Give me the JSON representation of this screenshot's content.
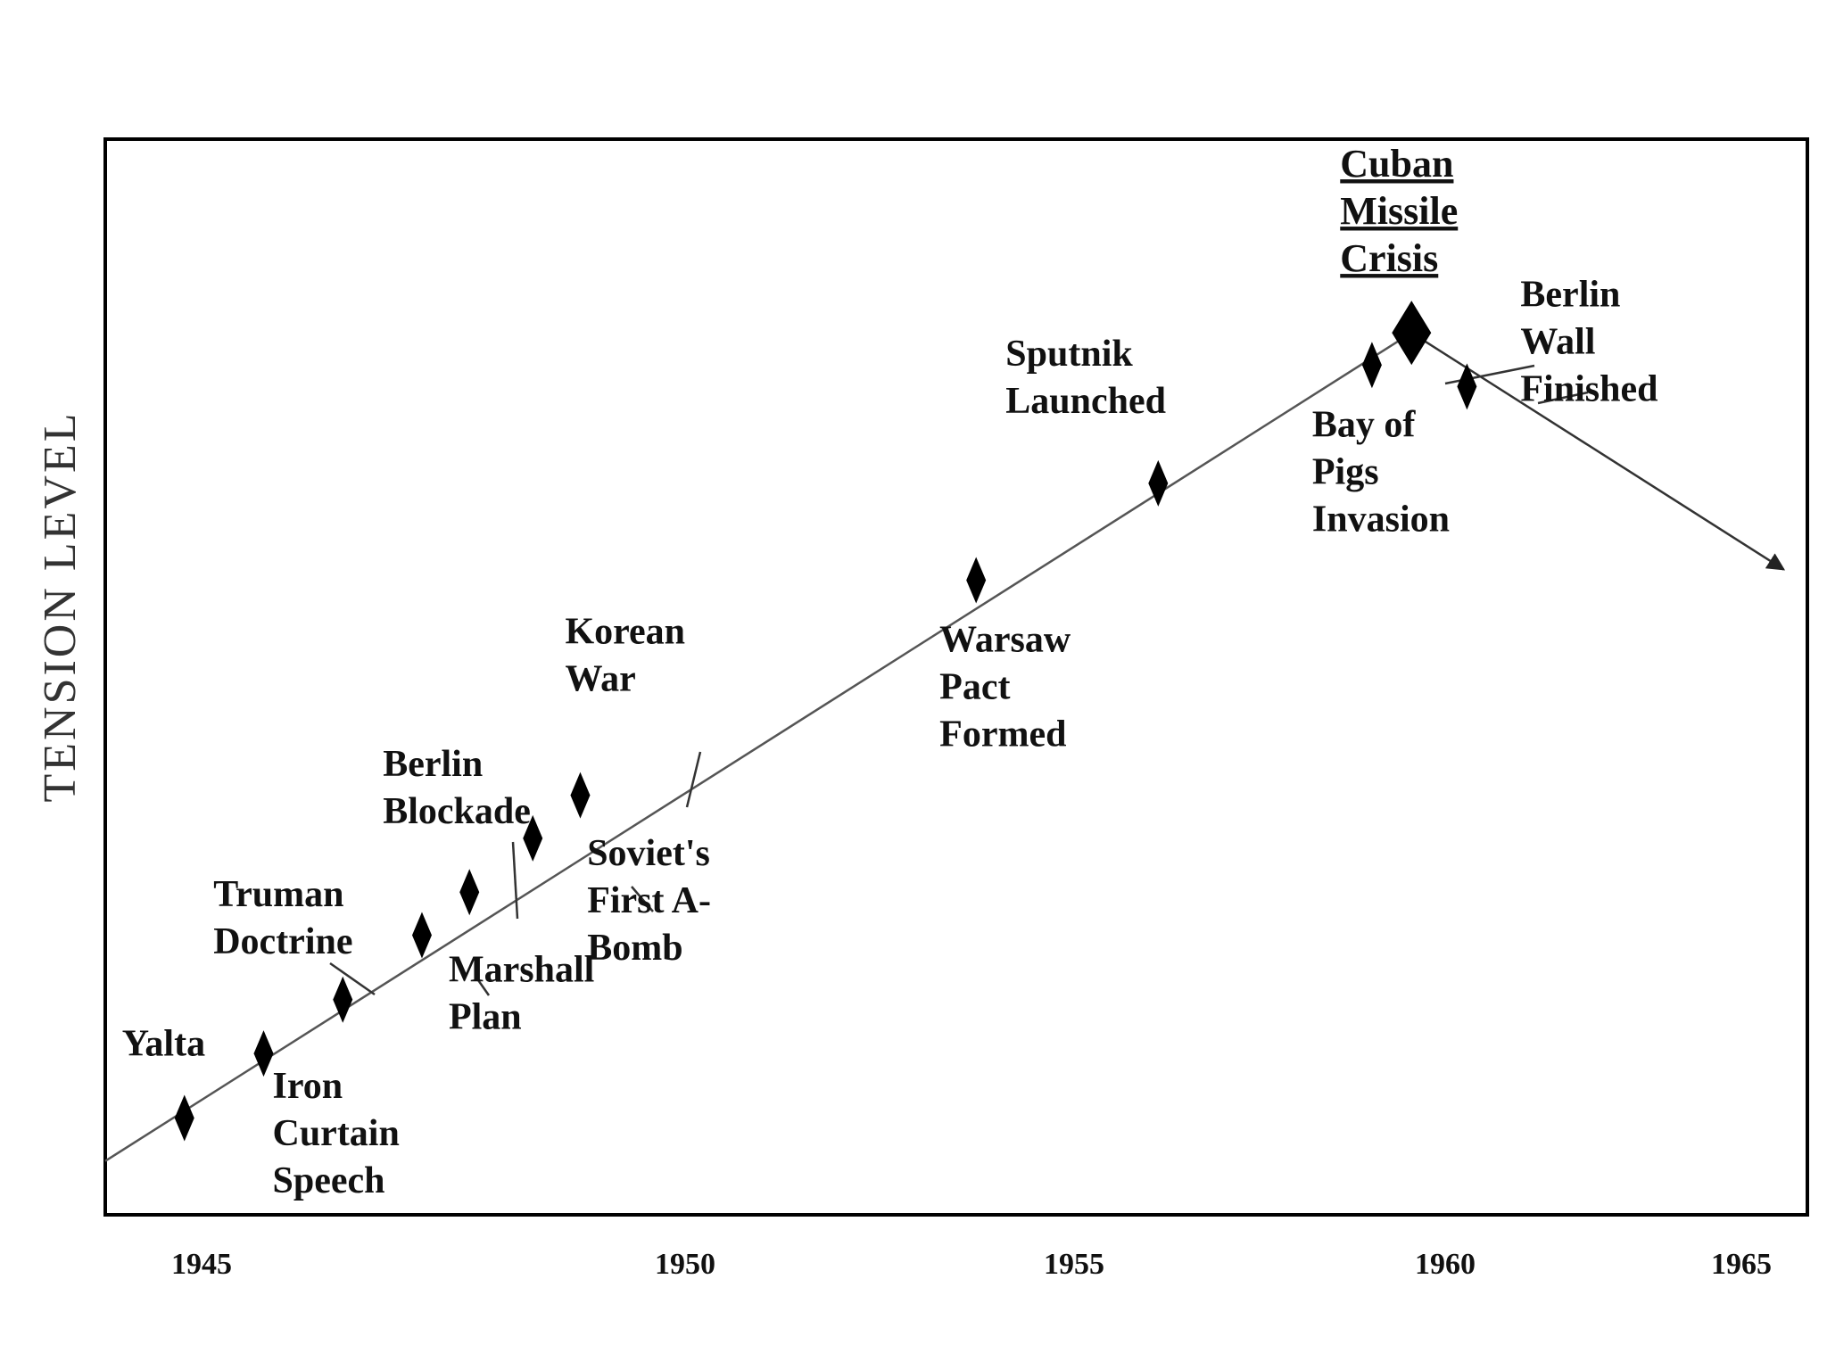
{
  "chart_data": {
    "type": "line",
    "title": "",
    "xlabel": "",
    "ylabel": "TENSION   LEVEL",
    "xlim": [
      1944,
      1965.5
    ],
    "ylim": [
      0,
      100
    ],
    "x_ticks": [
      "1945",
      "1950",
      "1955",
      "1960",
      "1965"
    ],
    "grid": false,
    "legend": "none",
    "trend": {
      "x": [
        1944,
        1960.5
      ],
      "y": [
        5,
        82
      ],
      "after_peak": {
        "x": [
          1960.5,
          1965.2
        ],
        "y": [
          82,
          60
        ],
        "arrow": true
      }
    },
    "events": [
      {
        "name": "yalta",
        "lines": [
          "Yalta"
        ],
        "x": 1945.0,
        "y": 9,
        "marker": "small",
        "underline": false
      },
      {
        "name": "iron-curtain",
        "lines": [
          "Iron",
          "Curtain",
          "Speech"
        ],
        "x": 1946.0,
        "y": 15,
        "marker": "small",
        "underline": false
      },
      {
        "name": "truman-doctrine",
        "lines": [
          "Truman",
          "Doctrine"
        ],
        "x": 1947.0,
        "y": 20,
        "marker": "small",
        "underline": false
      },
      {
        "name": "marshall-plan",
        "lines": [
          "Marshall",
          "Plan"
        ],
        "x": 1948.0,
        "y": 26,
        "marker": "small",
        "underline": false
      },
      {
        "name": "berlin-blockade",
        "lines": [
          "Berlin",
          "Blockade"
        ],
        "x": 1948.6,
        "y": 30,
        "marker": "small",
        "underline": false
      },
      {
        "name": "soviet-first-abomb",
        "lines": [
          "Soviet's",
          "First A-",
          "Bomb"
        ],
        "x": 1949.4,
        "y": 35,
        "marker": "small",
        "underline": false
      },
      {
        "name": "korean-war",
        "lines": [
          "Korean",
          "War"
        ],
        "x": 1950.0,
        "y": 39,
        "marker": "small",
        "underline": false
      },
      {
        "name": "warsaw-pact",
        "lines": [
          "Warsaw",
          "Pact",
          "Formed"
        ],
        "x": 1955.0,
        "y": 59,
        "marker": "small",
        "underline": false
      },
      {
        "name": "sputnik",
        "lines": [
          "Sputnik",
          "Launched"
        ],
        "x": 1957.3,
        "y": 68,
        "marker": "small",
        "underline": false
      },
      {
        "name": "bay-of-pigs",
        "lines": [
          "Bay of",
          "Pigs",
          "Invasion"
        ],
        "x": 1960.0,
        "y": 79,
        "marker": "small",
        "underline": false
      },
      {
        "name": "cuban-missile-crisis",
        "lines": [
          "Cuban",
          "Missile",
          "Crisis"
        ],
        "x": 1960.5,
        "y": 82,
        "marker": "large",
        "underline": true
      },
      {
        "name": "berlin-wall",
        "lines": [
          "Berlin",
          "Wall",
          "Finished"
        ],
        "x": 1961.2,
        "y": 77,
        "marker": "small",
        "underline": false
      }
    ]
  }
}
